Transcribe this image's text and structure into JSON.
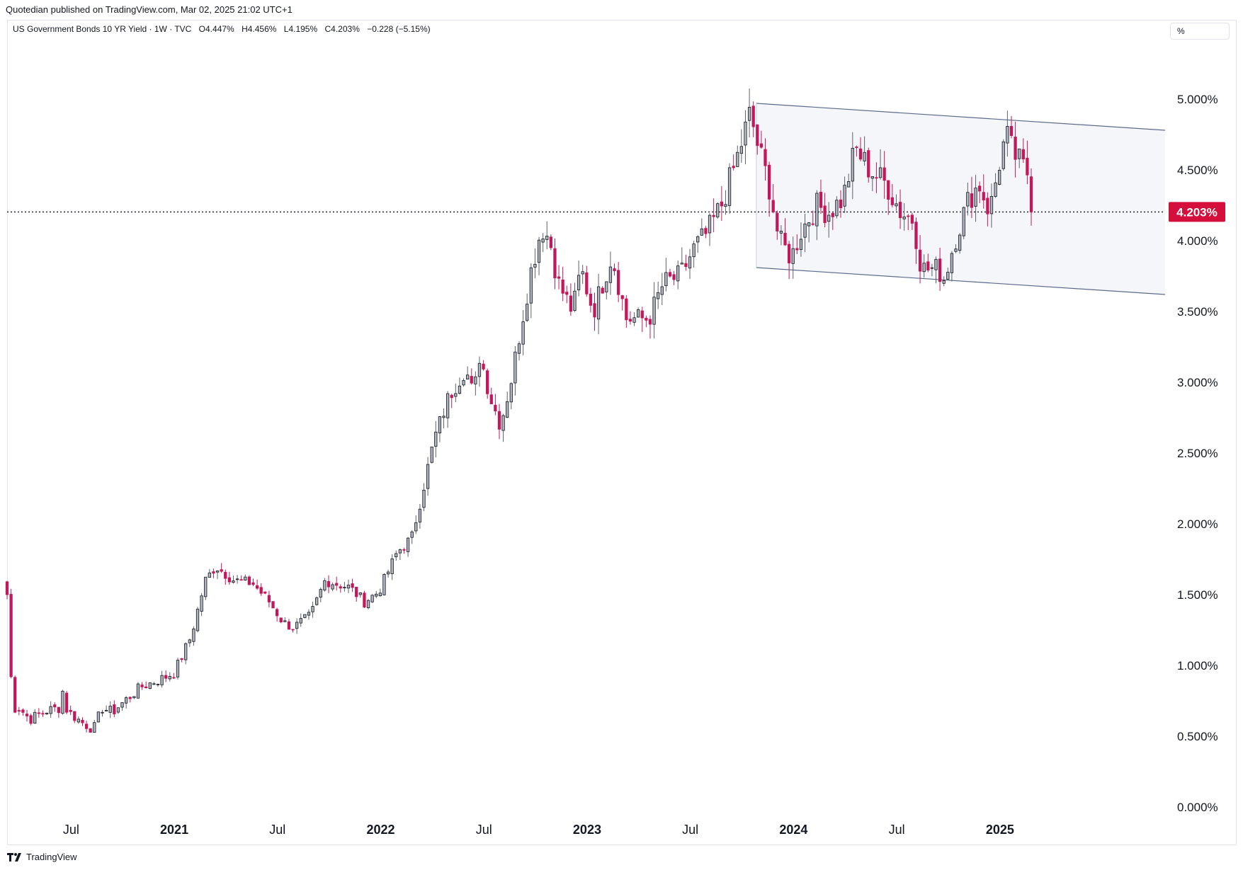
{
  "header": {
    "published": "Quotedian published on TradingView.com, Mar 02, 2025 21:02 UTC+1"
  },
  "legend": {
    "symbol": "US Government Bonds 10 YR Yield · 1W · TVC",
    "open": "O4.447%",
    "high": "H4.456%",
    "low": "L4.195%",
    "close": "C4.203%",
    "change": "−0.228 (−5.15%)"
  },
  "unit_selector": "%",
  "footer": {
    "brand": "TradingView"
  },
  "colors": {
    "up": "#b2b5be",
    "down": "#c2185b",
    "up_border": "#131722",
    "badge": "#d50f3b",
    "channel_fill": "#f5f6f9",
    "channel_line": "#5b6b8c"
  },
  "chart_data": {
    "type": "candlestick",
    "title": "US Government Bonds 10 YR Yield",
    "interval": "1W",
    "y_unit": "%",
    "y_ticks": [
      "5.000%",
      "4.500%",
      "4.000%",
      "3.500%",
      "3.000%",
      "2.500%",
      "2.000%",
      "1.500%",
      "1.000%",
      "0.500%",
      "0.000%"
    ],
    "ylim": [
      -0.05,
      5.55
    ],
    "x_ticks": [
      {
        "label": "Jul",
        "year": false,
        "t": 2020.5
      },
      {
        "label": "2021",
        "year": true,
        "t": 2021.0
      },
      {
        "label": "Jul",
        "year": false,
        "t": 2021.5
      },
      {
        "label": "2022",
        "year": true,
        "t": 2022.0
      },
      {
        "label": "Jul",
        "year": false,
        "t": 2022.5
      },
      {
        "label": "2023",
        "year": true,
        "t": 2023.0
      },
      {
        "label": "Jul",
        "year": false,
        "t": 2023.5
      },
      {
        "label": "2024",
        "year": true,
        "t": 2024.0
      },
      {
        "label": "Jul",
        "year": false,
        "t": 2024.5
      },
      {
        "label": "2025",
        "year": true,
        "t": 2025.0
      }
    ],
    "xlim": [
      2020.19,
      2025.8
    ],
    "last_price": 4.203,
    "last_price_label": "4.203%",
    "anchors": [
      [
        2020.19,
        1.5
      ],
      [
        2020.2,
        1.1
      ],
      [
        2020.22,
        0.7
      ],
      [
        2020.25,
        0.7
      ],
      [
        2020.3,
        0.62
      ],
      [
        2020.38,
        0.68
      ],
      [
        2020.44,
        0.7
      ],
      [
        2020.45,
        0.88
      ],
      [
        2020.48,
        0.68
      ],
      [
        2020.55,
        0.6
      ],
      [
        2020.61,
        0.55
      ],
      [
        2020.65,
        0.7
      ],
      [
        2020.7,
        0.67
      ],
      [
        2020.76,
        0.75
      ],
      [
        2020.84,
        0.85
      ],
      [
        2020.93,
        0.9
      ],
      [
        2021.0,
        0.95
      ],
      [
        2021.08,
        1.2
      ],
      [
        2021.15,
        1.6
      ],
      [
        2021.2,
        1.7
      ],
      [
        2021.29,
        1.6
      ],
      [
        2021.38,
        1.58
      ],
      [
        2021.46,
        1.45
      ],
      [
        2021.53,
        1.3
      ],
      [
        2021.58,
        1.27
      ],
      [
        2021.66,
        1.35
      ],
      [
        2021.73,
        1.6
      ],
      [
        2021.85,
        1.55
      ],
      [
        2021.92,
        1.45
      ],
      [
        2021.99,
        1.52
      ],
      [
        2022.08,
        1.8
      ],
      [
        2022.15,
        1.9
      ],
      [
        2022.19,
        2.15
      ],
      [
        2022.26,
        2.6
      ],
      [
        2022.33,
        2.9
      ],
      [
        2022.41,
        3.1
      ],
      [
        2022.45,
        2.9
      ],
      [
        2022.48,
        3.2
      ],
      [
        2022.53,
        2.9
      ],
      [
        2022.58,
        2.7
      ],
      [
        2022.63,
        3.0
      ],
      [
        2022.73,
        3.8
      ],
      [
        2022.78,
        4.1
      ],
      [
        2022.82,
        4.0
      ],
      [
        2022.86,
        3.7
      ],
      [
        2022.93,
        3.5
      ],
      [
        2022.97,
        3.8
      ],
      [
        2023.03,
        3.5
      ],
      [
        2023.12,
        3.9
      ],
      [
        2023.19,
        3.45
      ],
      [
        2023.26,
        3.45
      ],
      [
        2023.3,
        3.45
      ],
      [
        2023.37,
        3.7
      ],
      [
        2023.45,
        3.75
      ],
      [
        2023.52,
        3.95
      ],
      [
        2023.58,
        4.05
      ],
      [
        2023.65,
        4.25
      ],
      [
        2023.72,
        4.55
      ],
      [
        2023.79,
        4.9
      ],
      [
        2023.83,
        4.65
      ],
      [
        2023.88,
        4.4
      ],
      [
        2023.93,
        4.0
      ],
      [
        2023.99,
        3.88
      ],
      [
        2024.03,
        4.05
      ],
      [
        2024.11,
        4.25
      ],
      [
        2024.17,
        4.2
      ],
      [
        2024.24,
        4.3
      ],
      [
        2024.3,
        4.65
      ],
      [
        2024.37,
        4.5
      ],
      [
        2024.45,
        4.4
      ],
      [
        2024.52,
        4.2
      ],
      [
        2024.58,
        4.15
      ],
      [
        2024.62,
        3.8
      ],
      [
        2024.7,
        3.8
      ],
      [
        2024.73,
        3.73
      ],
      [
        2024.78,
        4.0
      ],
      [
        2024.85,
        4.3
      ],
      [
        2024.9,
        4.4
      ],
      [
        2024.95,
        4.2
      ],
      [
        2025.0,
        4.57
      ],
      [
        2025.03,
        4.75
      ],
      [
        2025.06,
        4.63
      ],
      [
        2025.12,
        4.5
      ],
      [
        2025.16,
        4.44
      ],
      [
        2025.17,
        4.2
      ]
    ],
    "channel": {
      "upper": [
        [
          2023.82,
          4.97
        ],
        [
          2025.8,
          4.78
        ]
      ],
      "lower": [
        [
          2023.82,
          3.81
        ],
        [
          2025.8,
          3.62
        ]
      ]
    }
  }
}
